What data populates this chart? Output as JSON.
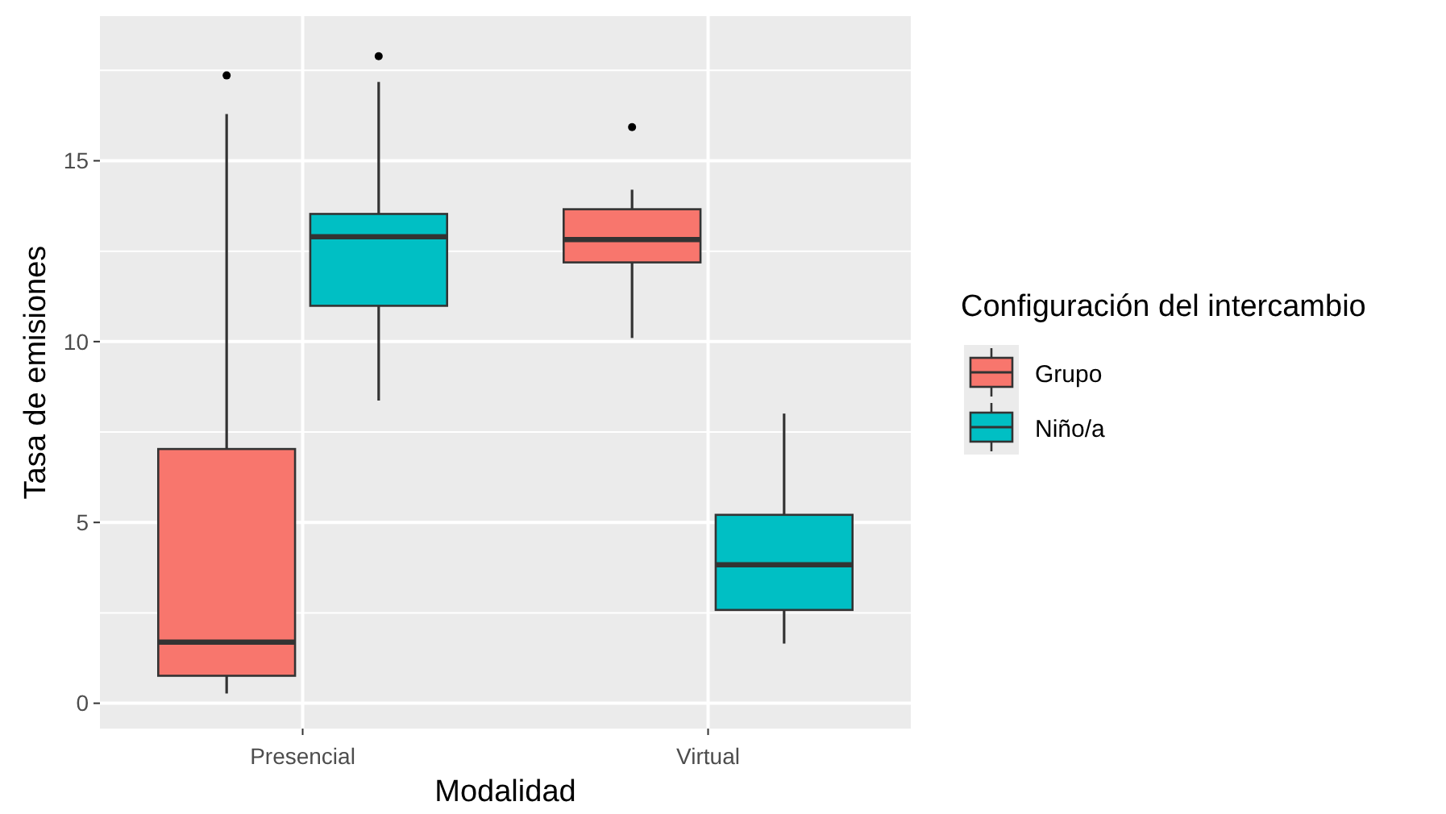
{
  "chart_data": {
    "type": "box",
    "xlabel": "Modalidad",
    "ylabel": "Tasa de emisiones",
    "legend_title": "Configuración del intercambio",
    "categories": [
      "Presencial",
      "Virtual"
    ],
    "ylim": [
      -0.7,
      19
    ],
    "yticks": [
      0,
      5,
      10,
      15
    ],
    "grid": true,
    "legend": "right",
    "series": [
      {
        "name": "Grupo",
        "color": "#f8766d",
        "boxes": [
          {
            "low": 0.27,
            "q1": 0.76,
            "median": 1.69,
            "q3": 7.03,
            "high": 16.29,
            "outliers": [
              17.36
            ]
          },
          {
            "low": 10.1,
            "q1": 12.19,
            "median": 12.82,
            "q3": 13.66,
            "high": 14.2,
            "outliers": [
              15.93
            ]
          }
        ]
      },
      {
        "name": "Niño/a",
        "color": "#00bfc4",
        "boxes": [
          {
            "low": 8.37,
            "q1": 10.99,
            "median": 12.9,
            "q3": 13.53,
            "high": 17.18,
            "outliers": [
              17.89
            ]
          },
          {
            "low": 1.65,
            "q1": 2.58,
            "median": 3.83,
            "q3": 5.21,
            "high": 8.01
          }
        ]
      }
    ]
  }
}
